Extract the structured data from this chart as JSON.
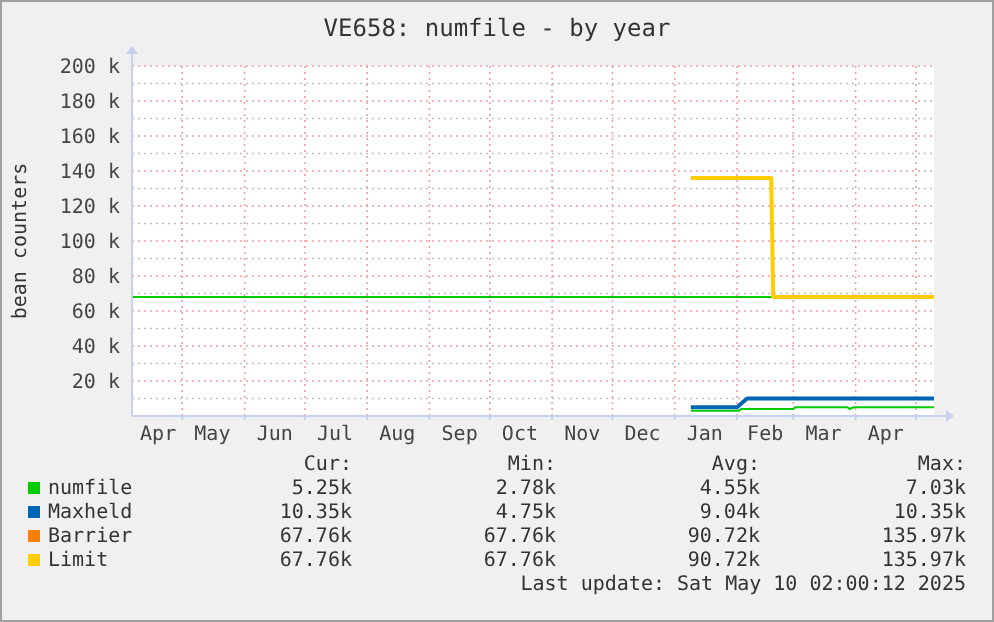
{
  "chart_data": {
    "type": "step",
    "title": "VE658: numfile - by year",
    "ylabel": "bean counters",
    "xlim": [
      "2024-04-06",
      "2025-05-10"
    ],
    "xticks": [
      {
        "value": "2024-04-19",
        "label": "Apr"
      },
      {
        "value": "2024-05-01",
        "label": null
      },
      {
        "value": "2024-05-16",
        "label": "May"
      },
      {
        "value": "2024-06-01",
        "label": null
      },
      {
        "value": "2024-06-16",
        "label": "Jun"
      },
      {
        "value": "2024-07-01",
        "label": null
      },
      {
        "value": "2024-07-16",
        "label": "Jul"
      },
      {
        "value": "2024-08-01",
        "label": null
      },
      {
        "value": "2024-08-16",
        "label": "Aug"
      },
      {
        "value": "2024-09-01",
        "label": null
      },
      {
        "value": "2024-09-16",
        "label": "Sep"
      },
      {
        "value": "2024-10-01",
        "label": null
      },
      {
        "value": "2024-10-16",
        "label": "Oct"
      },
      {
        "value": "2024-11-01",
        "label": null
      },
      {
        "value": "2024-11-16",
        "label": "Nov"
      },
      {
        "value": "2024-12-01",
        "label": null
      },
      {
        "value": "2024-12-16",
        "label": "Dec"
      },
      {
        "value": "2025-01-01",
        "label": null
      },
      {
        "value": "2025-01-16",
        "label": "Jan"
      },
      {
        "value": "2025-02-01",
        "label": null
      },
      {
        "value": "2025-02-15",
        "label": "Feb"
      },
      {
        "value": "2025-03-01",
        "label": null
      },
      {
        "value": "2025-03-16",
        "label": "Mar"
      },
      {
        "value": "2025-04-01",
        "label": null
      },
      {
        "value": "2025-04-16",
        "label": "Apr"
      },
      {
        "value": "2025-05-01",
        "label": null
      }
    ],
    "ylim": [
      0,
      200000
    ],
    "yticks": [
      {
        "value": 10000,
        "label": null
      },
      {
        "value": 20000,
        "label": "20 k"
      },
      {
        "value": 30000,
        "label": null
      },
      {
        "value": 40000,
        "label": "40 k"
      },
      {
        "value": 50000,
        "label": null
      },
      {
        "value": 60000,
        "label": "60 k"
      },
      {
        "value": 70000,
        "label": null
      },
      {
        "value": 80000,
        "label": "80 k"
      },
      {
        "value": 90000,
        "label": null
      },
      {
        "value": 100000,
        "label": "100 k"
      },
      {
        "value": 110000,
        "label": null
      },
      {
        "value": 120000,
        "label": "120 k"
      },
      {
        "value": 130000,
        "label": null
      },
      {
        "value": 140000,
        "label": "140 k"
      },
      {
        "value": 150000,
        "label": null
      },
      {
        "value": 160000,
        "label": "160 k"
      },
      {
        "value": 170000,
        "label": null
      },
      {
        "value": 180000,
        "label": "180 k"
      },
      {
        "value": 190000,
        "label": null
      },
      {
        "value": 200000,
        "label": "200 k"
      }
    ],
    "grid": true,
    "legend": "bottom",
    "ref_lines": [
      {
        "axis": "y",
        "value": 68000,
        "color": "#00cc00"
      }
    ],
    "series": [
      {
        "name": "numfile",
        "color": "#00cc00",
        "x": [
          "2025-01-09",
          "2025-02-02",
          "2025-02-03",
          "2025-03-01",
          "2025-03-02",
          "2025-03-28",
          "2025-03-29",
          "2025-03-31",
          "2025-05-10"
        ],
        "values": [
          3000,
          3000,
          4000,
          4000,
          5000,
          5000,
          4000,
          5000,
          5000
        ]
      },
      {
        "name": "Maxheld",
        "color": "#0066b3",
        "x": [
          "2025-01-09",
          "2025-02-01",
          "2025-02-06",
          "2025-05-10"
        ],
        "values": [
          5000,
          5000,
          10000,
          10000
        ]
      },
      {
        "name": "Barrier",
        "color": "#ff8000"
      },
      {
        "name": "Limit",
        "color": "#ffcc00",
        "x": [
          "2025-01-09",
          "2025-02-18",
          "2025-02-19",
          "2025-05-10"
        ],
        "values": [
          136000,
          136000,
          68000,
          68000
        ]
      }
    ],
    "annotations": [
      "Cur:",
      "Min:",
      "Avg:",
      "Max:",
      "5.25k",
      "2.78k",
      "4.55k",
      "7.03k",
      "10.35k",
      "4.75k",
      "9.04k",
      "10.35k",
      "67.76k",
      "67.76k",
      "90.72k",
      "135.97k",
      "67.76k",
      "67.76k",
      "90.72k",
      "135.97k",
      "Last update: Sat May 10 02:00:12 2025"
    ]
  }
}
